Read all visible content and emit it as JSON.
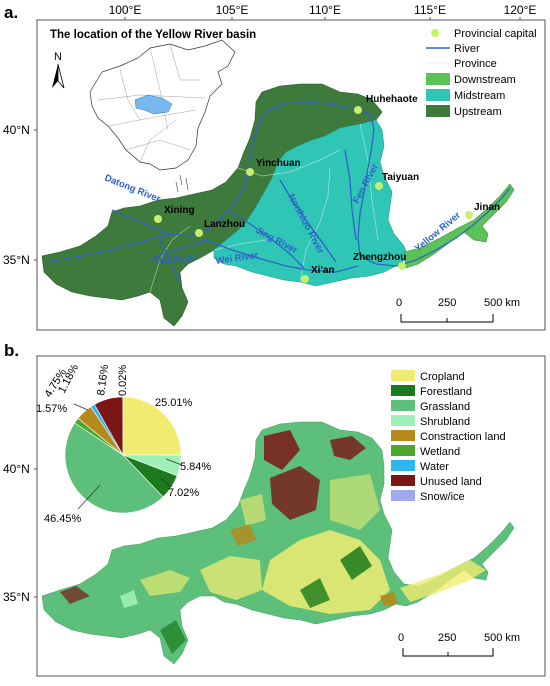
{
  "panel_a": {
    "label": "a.",
    "title": "The location of the Yellow River basin",
    "lon_ticks": [
      "100°E",
      "105°E",
      "110°E",
      "115°E",
      "120°E"
    ],
    "lat_ticks": [
      "40°N",
      "35°N"
    ],
    "north_label": "N",
    "cities": [
      {
        "name": "Huhehaote"
      },
      {
        "name": "Yinchuan"
      },
      {
        "name": "Taiyuan"
      },
      {
        "name": "Xining"
      },
      {
        "name": "Lanzhou"
      },
      {
        "name": "Jinan"
      },
      {
        "name": "Zhengzhou"
      },
      {
        "name": "Xi'an"
      }
    ],
    "rivers": [
      {
        "name": "Datong River"
      },
      {
        "name": "Yellow River"
      },
      {
        "name": "Northluo River"
      },
      {
        "name": "Fen River"
      },
      {
        "name": "Jing River"
      },
      {
        "name": "Wei River"
      },
      {
        "name": "Tao River"
      }
    ],
    "legend": [
      {
        "label": "Provincial capital",
        "symbol": "dot",
        "color": "#c8ef6c"
      },
      {
        "label": "River",
        "symbol": "line",
        "color": "#2f62c9"
      },
      {
        "label": "Province",
        "symbol": "blank",
        "color": "#ffffff"
      },
      {
        "label": "Downstream",
        "symbol": "patch",
        "color": "#5cc258"
      },
      {
        "label": "Midstream",
        "symbol": "patch",
        "color": "#2fc6b6"
      },
      {
        "label": "Upstream",
        "symbol": "patch",
        "color": "#3d7a3b"
      }
    ],
    "scale": {
      "labels": [
        "0",
        "250",
        "500 km"
      ]
    }
  },
  "panel_b": {
    "label": "b.",
    "lat_ticks": [
      "40°N",
      "35°N"
    ],
    "legend": [
      {
        "label": "Cropland",
        "color": "#f0ec72"
      },
      {
        "label": "Forestland",
        "color": "#1c7a1c"
      },
      {
        "label": "Grassland",
        "color": "#5cbf7a"
      },
      {
        "label": "Shrubland",
        "color": "#9ef0b6"
      },
      {
        "label": "Constraction land",
        "color": "#b58a1a"
      },
      {
        "label": "Wetland",
        "color": "#4ca82c"
      },
      {
        "label": "Water",
        "color": "#2fb6ef"
      },
      {
        "label": "Unused land",
        "color": "#7a1616"
      },
      {
        "label": "Snow/ice",
        "color": "#a0a8ef"
      }
    ],
    "pie": {
      "slices": [
        {
          "name": "Cropland",
          "percent": 25.01,
          "label": "25.01%"
        },
        {
          "name": "Shrubland",
          "percent": 5.84,
          "label": "5.84%"
        },
        {
          "name": "Forestland",
          "percent": 7.02,
          "label": "7.02%"
        },
        {
          "name": "Grassland",
          "percent": 46.45,
          "label": "46.45%"
        },
        {
          "name": "Wetland",
          "percent": 1.57,
          "label": "1.57%"
        },
        {
          "name": "Constraction land",
          "percent": 4.75,
          "label": "4.75%"
        },
        {
          "name": "Water",
          "percent": 1.18,
          "label": "1.18%"
        },
        {
          "name": "Unused land",
          "percent": 8.16,
          "label": "8.16%"
        },
        {
          "name": "Snow/ice",
          "percent": 0.02,
          "label": "0.02%"
        }
      ]
    },
    "scale": {
      "labels": [
        "0",
        "250",
        "500 km"
      ]
    }
  }
}
